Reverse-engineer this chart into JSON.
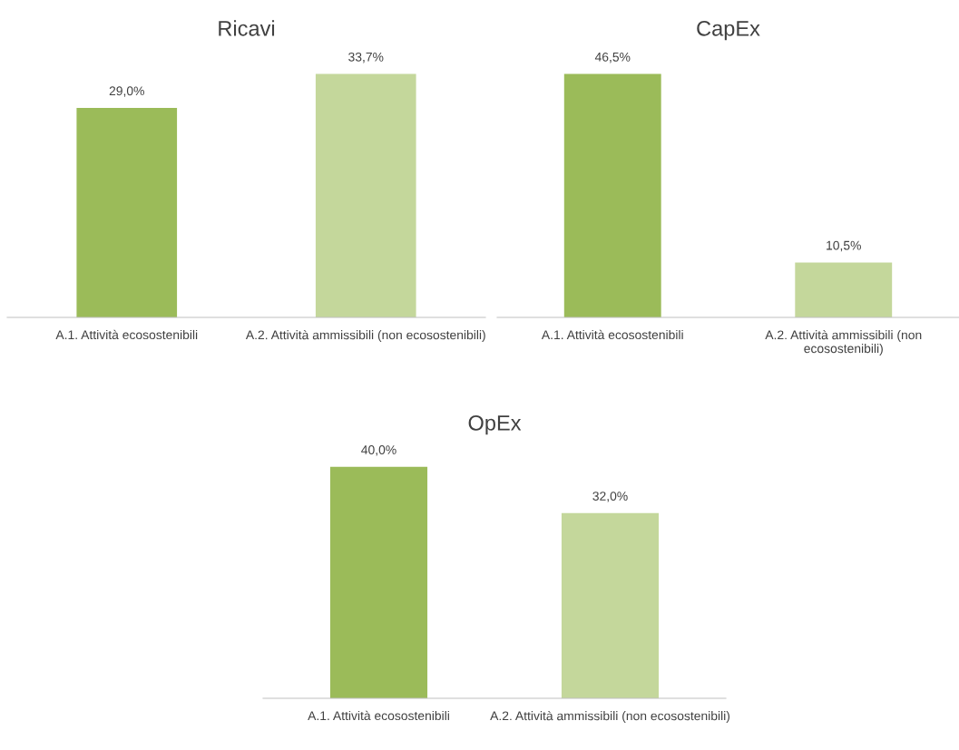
{
  "chart_data": [
    {
      "type": "bar",
      "title": "Ricavi",
      "categories": [
        "A.1. Attività ecosostenibili",
        "A.2. Attività ammissibili (non ecosostenibili)"
      ],
      "values": [
        29.0,
        33.7
      ],
      "colors": [
        "#9bbb59",
        "#c4d79b"
      ],
      "value_labels": [
        "29,0%",
        "33,7%"
      ],
      "grid": false,
      "legend": false
    },
    {
      "type": "bar",
      "title": "CapEx",
      "categories": [
        "A.1. Attività ecosostenibili",
        "A.2. Attività ammissibili (non ecosostenibili)"
      ],
      "values": [
        46.5,
        10.5
      ],
      "colors": [
        "#9bbb59",
        "#c4d79b"
      ],
      "value_labels": [
        "46,5%",
        "10,5%"
      ],
      "grid": false,
      "legend": false
    },
    {
      "type": "bar",
      "title": "OpEx",
      "categories": [
        "A.1. Attività ecosostenibili",
        "A.2. Attività ammissibili (non ecosostenibili)"
      ],
      "values": [
        40.0,
        32.0
      ],
      "colors": [
        "#9bbb59",
        "#c4d79b"
      ],
      "value_labels": [
        "40,0%",
        "32,0%"
      ],
      "grid": false,
      "legend": false
    }
  ]
}
